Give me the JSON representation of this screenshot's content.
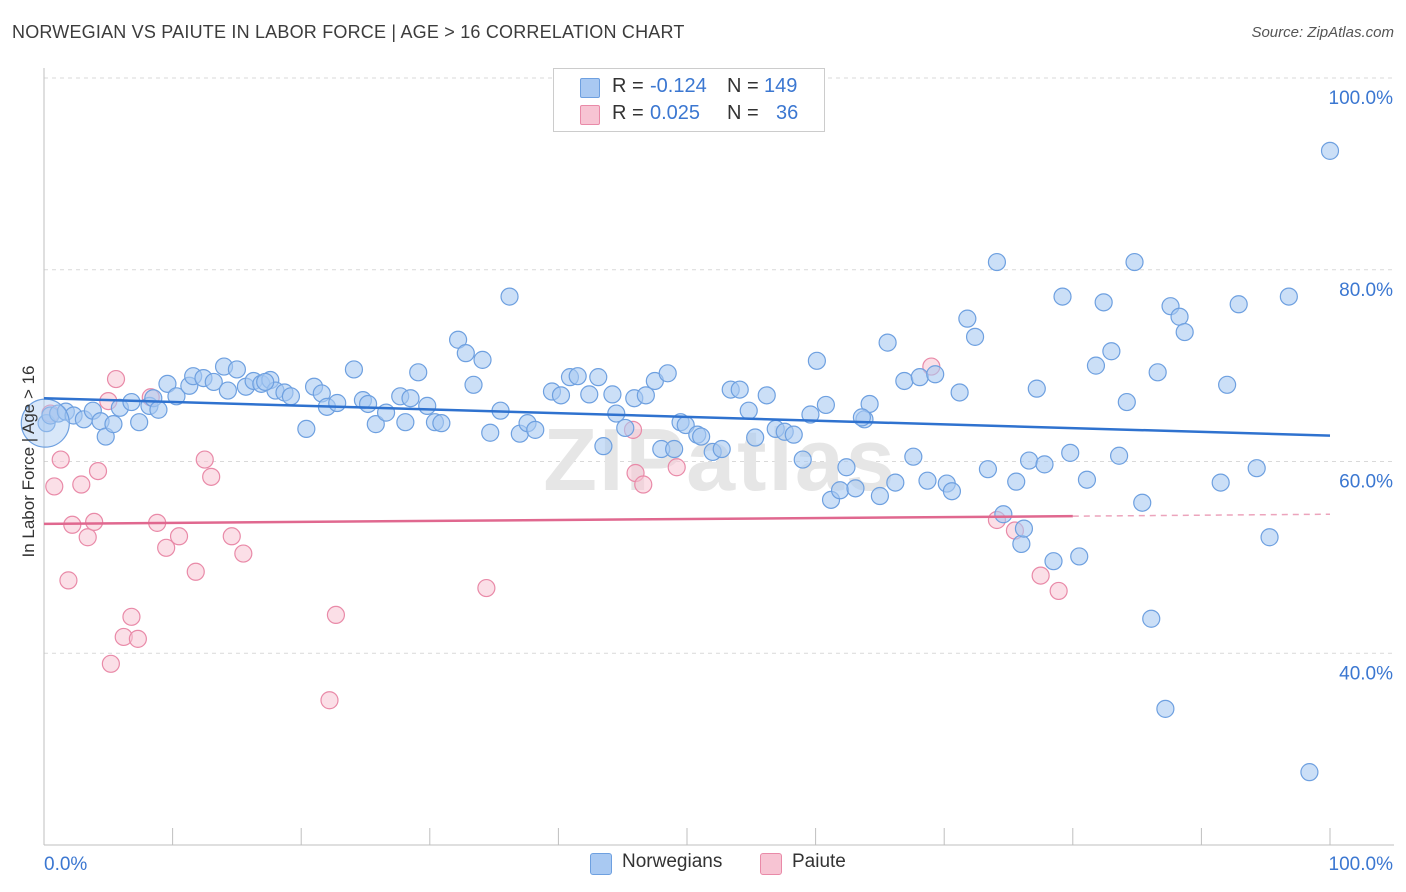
{
  "header": {
    "title": "NORWEGIAN VS PAIUTE IN LABOR FORCE | AGE > 16 CORRELATION CHART",
    "source": "Source: ZipAtlas.com"
  },
  "legend_top": {
    "rows": [
      {
        "r_label": "R =",
        "r_value": "-0.124",
        "n_label": "N =",
        "n_value": "149",
        "color": "#a9c9f2"
      },
      {
        "r_label": "R =",
        "r_value": "0.025",
        "n_label": "N =",
        "n_value": "36",
        "color": "#f7bfd0"
      }
    ]
  },
  "legend_bottom": {
    "items": [
      {
        "label": "Norwegians",
        "color": "#a9c9f2"
      },
      {
        "label": "Paiute",
        "color": "#f7bfd0"
      }
    ]
  },
  "watermark": "ZIPatlas",
  "colors": {
    "norwegian_fill": "#a9c9f2",
    "norwegian_stroke": "#6ea0e0",
    "norwegian_line": "#2f72cf",
    "paiute_fill": "#f7c4d3",
    "paiute_stroke": "#e98aa8",
    "paiute_line": "#e0688f",
    "axis_label": "#3b77d1",
    "grid": "#d9d9d9"
  },
  "chart_data": {
    "type": "scatter",
    "title": "NORWEGIAN VS PAIUTE IN LABOR FORCE | AGE > 16 CORRELATION CHART",
    "xlabel": "",
    "ylabel": "In Labor Force | Age > 16",
    "xlim": [
      0,
      100
    ],
    "ylim": [
      20,
      100
    ],
    "x_tick_labels": [
      "0.0%",
      "100.0%"
    ],
    "y_ticks": [
      40,
      60,
      80,
      100
    ],
    "y_tick_labels": [
      "40.0%",
      "60.0%",
      "80.0%",
      "100.0%"
    ],
    "grid": true,
    "legend_position": "top-center",
    "series": [
      {
        "name": "Norwegians",
        "r": -0.124,
        "n": 149,
        "trend": {
          "x": [
            0,
            100
          ],
          "y": [
            66.6,
            62.7
          ]
        },
        "points": [
          [
            0.2,
            64.0
          ],
          [
            0.5,
            64.8
          ],
          [
            1.1,
            65.0
          ],
          [
            1.7,
            65.2
          ],
          [
            2.3,
            64.8
          ],
          [
            3.1,
            64.4
          ],
          [
            3.8,
            65.3
          ],
          [
            4.4,
            64.2
          ],
          [
            4.8,
            62.6
          ],
          [
            5.4,
            63.9
          ],
          [
            5.9,
            65.6
          ],
          [
            6.8,
            66.2
          ],
          [
            7.4,
            64.1
          ],
          [
            8.2,
            65.8
          ],
          [
            8.5,
            66.6
          ],
          [
            8.9,
            65.4
          ],
          [
            9.6,
            68.1
          ],
          [
            10.3,
            66.8
          ],
          [
            11.3,
            67.9
          ],
          [
            11.6,
            68.9
          ],
          [
            12.4,
            68.7
          ],
          [
            13.2,
            68.3
          ],
          [
            14.0,
            69.9
          ],
          [
            14.3,
            67.4
          ],
          [
            15.0,
            69.6
          ],
          [
            15.7,
            67.8
          ],
          [
            16.3,
            68.4
          ],
          [
            16.9,
            68.1
          ],
          [
            17.6,
            68.5
          ],
          [
            18.0,
            67.4
          ],
          [
            18.7,
            67.2
          ],
          [
            19.2,
            66.8
          ],
          [
            20.4,
            63.4
          ],
          [
            21.0,
            67.8
          ],
          [
            21.6,
            67.1
          ],
          [
            22.0,
            65.7
          ],
          [
            22.8,
            66.1
          ],
          [
            24.1,
            69.6
          ],
          [
            24.8,
            66.4
          ],
          [
            25.2,
            66.0
          ],
          [
            25.8,
            63.9
          ],
          [
            26.6,
            65.1
          ],
          [
            27.7,
            66.8
          ],
          [
            28.1,
            64.1
          ],
          [
            28.5,
            66.6
          ],
          [
            29.1,
            69.3
          ],
          [
            29.8,
            65.8
          ],
          [
            30.4,
            64.1
          ],
          [
            30.9,
            64.0
          ],
          [
            32.2,
            72.7
          ],
          [
            32.8,
            71.3
          ],
          [
            33.4,
            68.0
          ],
          [
            34.1,
            70.6
          ],
          [
            34.7,
            63.0
          ],
          [
            35.5,
            65.3
          ],
          [
            36.2,
            77.2
          ],
          [
            37.0,
            62.9
          ],
          [
            37.6,
            64.0
          ],
          [
            38.2,
            63.3
          ],
          [
            39.5,
            67.3
          ],
          [
            40.2,
            66.9
          ],
          [
            40.9,
            68.8
          ],
          [
            41.5,
            68.9
          ],
          [
            42.4,
            67.0
          ],
          [
            43.1,
            68.8
          ],
          [
            43.5,
            61.6
          ],
          [
            44.2,
            67.0
          ],
          [
            45.2,
            63.5
          ],
          [
            45.9,
            66.6
          ],
          [
            46.8,
            66.9
          ],
          [
            47.5,
            68.4
          ],
          [
            48.0,
            61.3
          ],
          [
            48.5,
            69.2
          ],
          [
            49.0,
            61.3
          ],
          [
            49.5,
            64.1
          ],
          [
            49.9,
            63.8
          ],
          [
            50.8,
            62.8
          ],
          [
            51.1,
            62.6
          ],
          [
            52.0,
            61.0
          ],
          [
            52.7,
            61.3
          ],
          [
            53.4,
            67.5
          ],
          [
            54.1,
            67.5
          ],
          [
            54.8,
            65.3
          ],
          [
            55.3,
            62.5
          ],
          [
            56.2,
            66.9
          ],
          [
            56.9,
            63.4
          ],
          [
            57.6,
            63.1
          ],
          [
            58.3,
            62.8
          ],
          [
            59.0,
            60.2
          ],
          [
            59.6,
            64.9
          ],
          [
            60.1,
            70.5
          ],
          [
            60.8,
            65.9
          ],
          [
            61.2,
            56.0
          ],
          [
            61.9,
            57.0
          ],
          [
            62.4,
            59.4
          ],
          [
            63.1,
            57.2
          ],
          [
            63.8,
            64.4
          ],
          [
            64.2,
            66.0
          ],
          [
            65.0,
            56.4
          ],
          [
            65.6,
            72.4
          ],
          [
            66.2,
            57.8
          ],
          [
            66.9,
            68.4
          ],
          [
            67.6,
            60.5
          ],
          [
            68.1,
            68.8
          ],
          [
            68.7,
            58.0
          ],
          [
            69.3,
            69.1
          ],
          [
            70.2,
            57.7
          ],
          [
            70.6,
            56.9
          ],
          [
            71.2,
            67.2
          ],
          [
            71.8,
            74.9
          ],
          [
            72.4,
            73.0
          ],
          [
            73.4,
            59.2
          ],
          [
            74.1,
            80.8
          ],
          [
            74.6,
            54.5
          ],
          [
            75.6,
            57.9
          ],
          [
            76.0,
            51.4
          ],
          [
            76.6,
            60.1
          ],
          [
            77.2,
            67.6
          ],
          [
            77.8,
            59.7
          ],
          [
            78.5,
            49.6
          ],
          [
            79.2,
            77.2
          ],
          [
            79.8,
            60.9
          ],
          [
            80.5,
            50.1
          ],
          [
            81.1,
            58.1
          ],
          [
            81.8,
            70.0
          ],
          [
            82.4,
            76.6
          ],
          [
            83.0,
            71.5
          ],
          [
            83.6,
            60.6
          ],
          [
            84.2,
            66.2
          ],
          [
            84.8,
            80.8
          ],
          [
            85.4,
            55.7
          ],
          [
            86.1,
            43.6
          ],
          [
            86.6,
            69.3
          ],
          [
            87.2,
            34.2
          ],
          [
            87.6,
            76.2
          ],
          [
            88.3,
            75.1
          ],
          [
            88.7,
            73.5
          ],
          [
            91.5,
            57.8
          ],
          [
            92.0,
            68.0
          ],
          [
            92.9,
            76.4
          ],
          [
            94.3,
            59.3
          ],
          [
            95.3,
            52.1
          ],
          [
            96.8,
            77.2
          ],
          [
            98.4,
            27.6
          ],
          [
            100.0,
            92.4
          ],
          [
            76.2,
            53.0
          ],
          [
            63.6,
            64.6
          ],
          [
            44.5,
            65.0
          ],
          [
            17.2,
            68.3
          ]
        ]
      },
      {
        "name": "Paiute",
        "r": 0.025,
        "n": 36,
        "trend": {
          "x": [
            0,
            80
          ],
          "y": [
            53.5,
            54.3
          ]
        },
        "trend_dashed": {
          "x": [
            80,
            100
          ],
          "y": [
            54.3,
            54.5
          ]
        },
        "points": [
          [
            0.5,
            65.0
          ],
          [
            0.8,
            57.4
          ],
          [
            1.3,
            60.2
          ],
          [
            1.9,
            47.6
          ],
          [
            2.2,
            53.4
          ],
          [
            2.9,
            57.6
          ],
          [
            3.4,
            52.1
          ],
          [
            3.9,
            53.7
          ],
          [
            4.2,
            59.0
          ],
          [
            5.2,
            38.9
          ],
          [
            5.6,
            68.6
          ],
          [
            6.2,
            41.7
          ],
          [
            6.8,
            43.8
          ],
          [
            7.3,
            41.5
          ],
          [
            8.3,
            66.7
          ],
          [
            8.8,
            53.6
          ],
          [
            9.5,
            51.0
          ],
          [
            10.5,
            52.2
          ],
          [
            11.8,
            48.5
          ],
          [
            12.5,
            60.2
          ],
          [
            13.0,
            58.4
          ],
          [
            14.6,
            52.2
          ],
          [
            15.5,
            50.4
          ],
          [
            22.2,
            35.1
          ],
          [
            22.7,
            44.0
          ],
          [
            34.4,
            46.8
          ],
          [
            45.8,
            63.3
          ],
          [
            46.0,
            58.8
          ],
          [
            46.6,
            57.6
          ],
          [
            49.2,
            59.4
          ],
          [
            69.0,
            69.9
          ],
          [
            74.1,
            53.9
          ],
          [
            75.5,
            52.8
          ],
          [
            77.5,
            48.1
          ],
          [
            78.9,
            46.5
          ],
          [
            5.0,
            66.3
          ]
        ]
      }
    ]
  }
}
